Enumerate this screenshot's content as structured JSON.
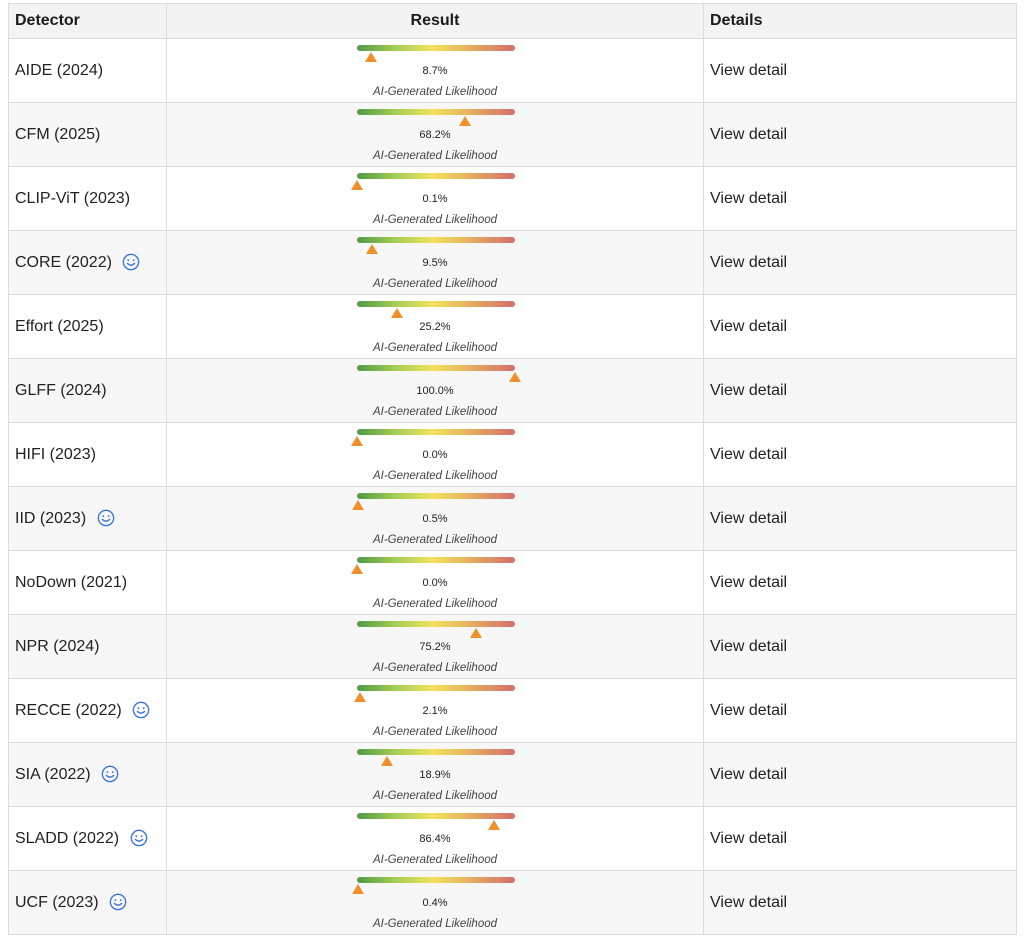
{
  "table": {
    "headers": {
      "detector": "Detector",
      "result": "Result",
      "details": "Details"
    },
    "likelihood_label": "AI-Generated Likelihood",
    "details_label": "View detail",
    "marker_color": "#f0902a",
    "smile_icon_color": "#3b73e0",
    "rows": [
      {
        "detector": "AIDE (2024)",
        "pct_text": "8.7%",
        "value": 8.7,
        "icon": false
      },
      {
        "detector": "CFM (2025)",
        "pct_text": "68.2%",
        "value": 68.2,
        "icon": false
      },
      {
        "detector": "CLIP-ViT (2023)",
        "pct_text": "0.1%",
        "value": 0.1,
        "icon": false
      },
      {
        "detector": "CORE (2022)",
        "pct_text": "9.5%",
        "value": 9.5,
        "icon": true
      },
      {
        "detector": "Effort (2025)",
        "pct_text": "25.2%",
        "value": 25.2,
        "icon": false
      },
      {
        "detector": "GLFF (2024)",
        "pct_text": "100.0%",
        "value": 100.0,
        "icon": false
      },
      {
        "detector": "HIFI (2023)",
        "pct_text": "0.0%",
        "value": 0.0,
        "icon": false
      },
      {
        "detector": "IID (2023)",
        "pct_text": "0.5%",
        "value": 0.5,
        "icon": true
      },
      {
        "detector": "NoDown (2021)",
        "pct_text": "0.0%",
        "value": 0.0,
        "icon": false
      },
      {
        "detector": "NPR (2024)",
        "pct_text": "75.2%",
        "value": 75.2,
        "icon": false
      },
      {
        "detector": "RECCE (2022)",
        "pct_text": "2.1%",
        "value": 2.1,
        "icon": true
      },
      {
        "detector": "SIA (2022)",
        "pct_text": "18.9%",
        "value": 18.9,
        "icon": true
      },
      {
        "detector": "SLADD (2022)",
        "pct_text": "86.4%",
        "value": 86.4,
        "icon": true
      },
      {
        "detector": "UCF (2023)",
        "pct_text": "0.4%",
        "value": 0.4,
        "icon": true
      }
    ]
  }
}
